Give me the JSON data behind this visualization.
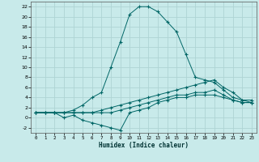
{
  "title": "",
  "xlabel": "Humidex (Indice chaleur)",
  "ylabel": "",
  "bg_color": "#c8eaea",
  "grid_color": "#aed4d4",
  "line_color": "#006666",
  "xlim": [
    -0.5,
    23.5
  ],
  "ylim": [
    -3,
    23
  ],
  "xticks": [
    0,
    1,
    2,
    3,
    4,
    5,
    6,
    7,
    8,
    9,
    10,
    11,
    12,
    13,
    14,
    15,
    16,
    17,
    18,
    19,
    20,
    21,
    22,
    23
  ],
  "yticks": [
    -2,
    0,
    2,
    4,
    6,
    8,
    10,
    12,
    14,
    16,
    18,
    20,
    22
  ],
  "series": [
    {
      "x": [
        0,
        1,
        2,
        3,
        4,
        5,
        6,
        7,
        8,
        9,
        10,
        11,
        12,
        13,
        14,
        15,
        16,
        17,
        18,
        19,
        20,
        21,
        22,
        23
      ],
      "y": [
        1,
        1,
        1,
        1,
        1.5,
        2.5,
        4,
        5,
        10,
        15,
        20.5,
        22,
        22,
        21,
        19,
        17,
        12.5,
        8,
        7.5,
        7,
        5.5,
        4,
        3.5,
        3
      ]
    },
    {
      "x": [
        0,
        1,
        2,
        3,
        4,
        5,
        6,
        7,
        8,
        9,
        10,
        11,
        12,
        13,
        14,
        15,
        16,
        17,
        18,
        19,
        20,
        21,
        22,
        23
      ],
      "y": [
        1,
        1,
        1,
        1,
        1,
        1,
        1,
        1.5,
        2,
        2.5,
        3,
        3.5,
        4,
        4.5,
        5,
        5.5,
        6,
        6.5,
        7,
        7.5,
        6,
        5,
        3.5,
        3.5
      ]
    },
    {
      "x": [
        0,
        1,
        2,
        3,
        4,
        5,
        6,
        7,
        8,
        9,
        10,
        11,
        12,
        13,
        14,
        15,
        16,
        17,
        18,
        19,
        20,
        21,
        22,
        23
      ],
      "y": [
        1,
        1,
        1,
        1,
        1,
        1,
        1,
        1,
        1,
        1.5,
        2,
        2.5,
        3,
        3.5,
        4,
        4.5,
        4.5,
        5,
        5,
        5.5,
        4.5,
        3.5,
        3,
        3
      ]
    },
    {
      "x": [
        0,
        2,
        3,
        4,
        5,
        6,
        7,
        8,
        9,
        10,
        11,
        12,
        13,
        14,
        15,
        16,
        17,
        18,
        19,
        20,
        21,
        22,
        23
      ],
      "y": [
        1,
        1,
        0,
        0.5,
        -0.5,
        -1,
        -1.5,
        -2,
        -2.5,
        1,
        1.5,
        2,
        3,
        3.5,
        4,
        4,
        4.5,
        4.5,
        4.5,
        4,
        3.5,
        3,
        3
      ]
    }
  ]
}
